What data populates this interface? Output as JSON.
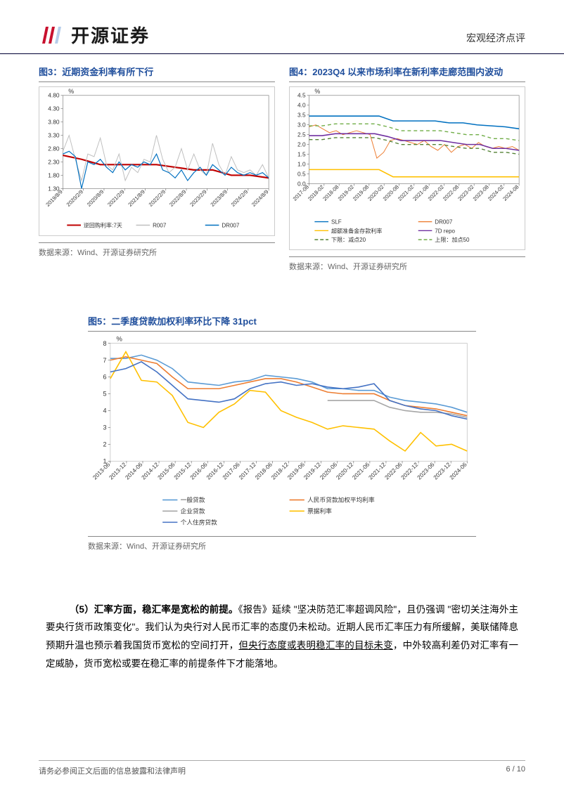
{
  "header": {
    "company": "开源证券",
    "category": "宏观经济点评"
  },
  "chart3": {
    "type": "line",
    "title": "图3：近期资金利率有所下行",
    "ylabel": "%",
    "ylim": [
      1.3,
      4.8
    ],
    "yticks": [
      1.3,
      1.8,
      2.3,
      2.8,
      3.3,
      3.8,
      4.3,
      4.8
    ],
    "xticks": [
      "2019/8/9",
      "2020/2/9",
      "2020/8/9",
      "2021/2/9",
      "2021/8/9",
      "2022/2/9",
      "2022/8/9",
      "2023/2/9",
      "2023/8/9",
      "2024/2/9",
      "2024/8/9"
    ],
    "series": [
      {
        "name": "逆回购利率:7天",
        "color": "#c00000",
        "width": 2.2,
        "data": [
          2.55,
          2.4,
          2.2,
          2.2,
          2.2,
          2.2,
          2.1,
          2.0,
          2.0,
          1.8,
          1.8,
          1.7
        ]
      },
      {
        "name": "R007",
        "color": "#bfbfbf",
        "width": 1,
        "data": [
          2.7,
          3.3,
          2.4,
          1.6,
          2.6,
          2.5,
          3.2,
          2.2,
          2.0,
          2.6,
          1.6,
          2.1,
          1.9,
          2.4,
          2.3,
          3.3,
          2.4,
          1.9,
          2.1,
          2.8,
          2.0,
          2.6,
          2.0,
          1.8,
          3.0,
          2.2,
          1.8,
          2.5,
          2.0,
          1.9,
          2.0,
          1.8,
          2.2,
          1.7
        ]
      },
      {
        "name": "DR007",
        "color": "#0070c0",
        "width": 1.2,
        "data": [
          2.6,
          2.7,
          2.5,
          1.3,
          2.3,
          2.2,
          2.4,
          2.1,
          1.9,
          2.3,
          2.0,
          2.2,
          2.1,
          2.3,
          2.2,
          2.6,
          2.0,
          1.9,
          1.7,
          2.0,
          1.6,
          1.9,
          2.1,
          1.8,
          2.2,
          2.0,
          1.8,
          2.1,
          1.9,
          1.8,
          1.9,
          1.8,
          1.9,
          1.7
        ]
      }
    ],
    "background_color": "#ffffff",
    "border_color": "#808080",
    "source": "数据来源：Wind、开源证券研究所"
  },
  "chart4": {
    "type": "line",
    "title": "图4：2023Q4 以来市场利率在新利率走廊范围内波动",
    "ylabel": "%",
    "ylim": [
      0,
      4.5
    ],
    "yticks": [
      0,
      0.5,
      1.0,
      1.5,
      2.0,
      2.5,
      3.0,
      3.5,
      4.0,
      4.5
    ],
    "xticks": [
      "2017-08",
      "2018-02",
      "2018-08",
      "2019-02",
      "2019-08",
      "2020-02",
      "2020-08",
      "2021-02",
      "2021-08",
      "2022-02",
      "2022-08",
      "2023-02",
      "2023-08",
      "2024-02",
      "2024-08"
    ],
    "series": [
      {
        "name": "SLF",
        "style": "solid",
        "color": "#0070c0",
        "width": 1.6,
        "data": [
          3.45,
          3.45,
          3.45,
          3.45,
          3.45,
          3.45,
          3.2,
          3.2,
          3.2,
          3.2,
          3.1,
          3.1,
          3.0,
          2.95,
          2.9,
          2.8
        ]
      },
      {
        "name": "DR007",
        "style": "solid",
        "color": "#ed7d31",
        "width": 1,
        "data": [
          2.9,
          3.0,
          2.8,
          2.6,
          2.7,
          2.5,
          2.6,
          2.7,
          2.6,
          2.5,
          1.3,
          1.6,
          2.2,
          2.3,
          2.2,
          2.1,
          2.0,
          2.2,
          1.9,
          1.7,
          2.0,
          1.6,
          1.9,
          2.0,
          1.8,
          2.1,
          1.9,
          1.8,
          1.9,
          1.8,
          1.9,
          1.7
        ]
      },
      {
        "name": "超额准备金存款利率",
        "style": "solid",
        "color": "#ffc000",
        "width": 1.6,
        "data": [
          0.72,
          0.72,
          0.72,
          0.72,
          0.72,
          0.72,
          0.35,
          0.35,
          0.35,
          0.35,
          0.35,
          0.35,
          0.35,
          0.35,
          0.35,
          0.35
        ]
      },
      {
        "name": "7D repo",
        "style": "solid",
        "color": "#7030a0",
        "width": 1.6,
        "data": [
          2.45,
          2.45,
          2.55,
          2.55,
          2.55,
          2.55,
          2.4,
          2.2,
          2.2,
          2.2,
          2.2,
          2.1,
          2.0,
          2.0,
          1.8,
          1.8,
          1.7
        ]
      },
      {
        "name": "下限：减点20",
        "style": "dashed",
        "color": "#548235",
        "width": 1.4,
        "data": [
          2.25,
          2.25,
          2.35,
          2.35,
          2.35,
          2.35,
          2.2,
          2.0,
          2.0,
          2.0,
          2.0,
          1.9,
          1.8,
          1.8,
          1.6,
          1.6,
          1.5
        ]
      },
      {
        "name": "上限：加点50",
        "style": "dashed",
        "color": "#70ad47",
        "width": 1.4,
        "data": [
          2.95,
          2.95,
          3.05,
          3.05,
          3.05,
          3.05,
          2.9,
          2.7,
          2.7,
          2.7,
          2.7,
          2.6,
          2.5,
          2.5,
          2.3,
          2.3,
          2.2
        ]
      }
    ],
    "background_color": "#ffffff",
    "border_color": "#808080",
    "source": "数据来源：Wind、开源证券研究所"
  },
  "chart5": {
    "type": "line",
    "title": "图5：二季度贷款加权利率环比下降 31pct",
    "ylabel": "%",
    "ylim": [
      1,
      8
    ],
    "yticks": [
      1,
      2,
      3,
      4,
      5,
      6,
      7,
      8
    ],
    "xticks": [
      "2013-06",
      "2013-12",
      "2014-06",
      "2014-12",
      "2015-06",
      "2015-12",
      "2016-06",
      "2016-12",
      "2017-06",
      "2017-12",
      "2018-06",
      "2018-12",
      "2019-06",
      "2019-12",
      "2020-06",
      "2020-12",
      "2021-06",
      "2021-12",
      "2022-06",
      "2022-12",
      "2023-06",
      "2023-12",
      "2024-06"
    ],
    "series": [
      {
        "name": "一般贷款",
        "color": "#5b9bd5",
        "width": 1.5,
        "data": [
          7.1,
          7.1,
          7.3,
          7.0,
          6.5,
          5.7,
          5.6,
          5.5,
          5.7,
          5.8,
          6.1,
          6.0,
          5.9,
          5.7,
          5.3,
          5.3,
          5.2,
          5.2,
          4.8,
          4.6,
          4.5,
          4.4,
          4.2,
          3.9
        ]
      },
      {
        "name": "人民币贷款加权平均利率",
        "color": "#ed7d31",
        "width": 1.5,
        "data": [
          7.0,
          7.2,
          7.0,
          6.8,
          6.0,
          5.3,
          5.3,
          5.3,
          5.5,
          5.7,
          5.9,
          5.9,
          5.7,
          5.4,
          5.1,
          5.0,
          5.0,
          5.0,
          4.6,
          4.3,
          4.2,
          4.1,
          3.9,
          3.7
        ]
      },
      {
        "name": "企业贷款",
        "color": "#a6a6a6",
        "width": 1.5,
        "data": [
          null,
          null,
          null,
          null,
          null,
          null,
          null,
          null,
          null,
          null,
          null,
          null,
          null,
          null,
          4.6,
          4.6,
          4.6,
          4.6,
          4.2,
          4.0,
          3.9,
          3.9,
          3.8,
          3.6
        ]
      },
      {
        "name": "票据利率",
        "color": "#ffc000",
        "width": 1.5,
        "data": [
          5.9,
          7.5,
          5.8,
          5.7,
          4.9,
          3.3,
          3.0,
          3.9,
          4.4,
          5.2,
          5.1,
          4.0,
          3.6,
          3.3,
          2.9,
          3.1,
          3.0,
          2.9,
          2.2,
          1.6,
          2.7,
          1.9,
          2.0,
          1.6
        ]
      },
      {
        "name": "个人住房贷款",
        "color": "#4472c4",
        "width": 1.5,
        "data": [
          6.3,
          6.5,
          6.9,
          6.3,
          5.5,
          4.7,
          4.6,
          4.5,
          4.7,
          5.3,
          5.6,
          5.7,
          5.5,
          5.6,
          5.4,
          5.3,
          5.4,
          5.6,
          4.6,
          4.3,
          4.1,
          4.0,
          3.7,
          3.5
        ]
      }
    ],
    "background_color": "#ffffff",
    "border_color": "#bfbfbf",
    "source": "数据来源：Wind、开源证券研究所"
  },
  "body": {
    "p1_lead": "（5）汇率方面，稳汇率是宽松的前提。",
    "p1_a": "《报告》延续 \"坚决防范汇率超调风险\"，且仍强调 \"密切关注海外主要央行货币政策变化\"。我们认为央行对人民币汇率的态度仍未松动。近期人民币汇率压力有所缓解，美联储降息预期升温也预示着我国货币宽松的空间打开，",
    "p1_u": "但央行态度或表明稳汇率的目标未变",
    "p1_b": "，中外较高利差仍对汇率有一定威胁，货币宽松或要在稳汇率的前提条件下才能落地。"
  },
  "footer": {
    "disclaimer": "请务必参阅正文后面的信息披露和法律声明",
    "page": "6 / 10"
  },
  "colors": {
    "title_blue": "#1f4e9c",
    "header_border": "#000033"
  }
}
